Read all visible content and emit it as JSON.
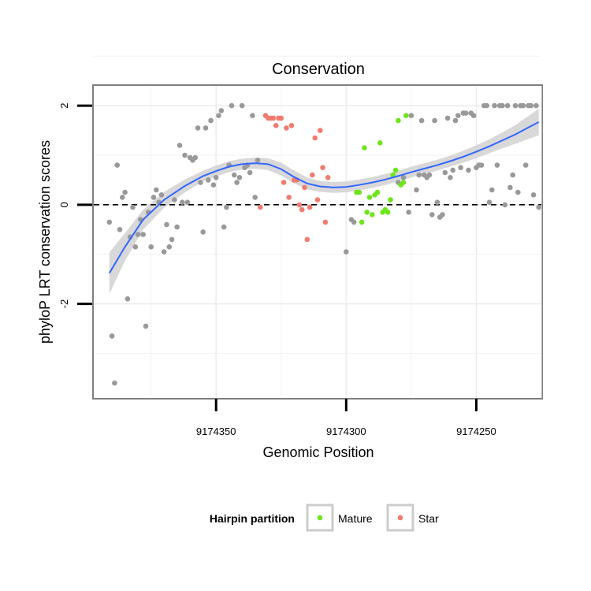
{
  "chart_data": {
    "type": "scatter",
    "title": "Conservation",
    "xlabel": "Genomic Position",
    "ylabel": "phyloP LRT conservation scores",
    "x_reversed": true,
    "xlim": [
      9174397,
      9174225
    ],
    "ylim": [
      -3.9,
      2.4
    ],
    "x_ticks": [
      9174350,
      9174300,
      9174250
    ],
    "x_tick_labels": [
      "9174350",
      "9174300",
      "9174250"
    ],
    "y_ticks": [
      2,
      0,
      -2
    ],
    "y_tick_labels": [
      "2",
      "0",
      "-2"
    ],
    "reference_line": {
      "y": 0,
      "style": "dashed"
    },
    "grid": true,
    "legend": {
      "title": "Hairpin partition",
      "placement": "bottom",
      "entries": [
        {
          "label": "Mature",
          "color": "#6fe51d"
        },
        {
          "label": "Star",
          "color": "#f07c6e"
        }
      ]
    },
    "colors": {
      "Other": "#999999",
      "Mature": "#6fe51d",
      "Star": "#f07c6e",
      "smooth": "#3366ff",
      "band": "#d4d4d4"
    },
    "series": [
      {
        "name": "Other",
        "points": [
          [
            9174391,
            -0.35
          ],
          [
            9174390,
            -2.65
          ],
          [
            9174389,
            -3.6
          ],
          [
            9174388,
            0.8
          ],
          [
            9174387,
            -0.5
          ],
          [
            9174386,
            0.15
          ],
          [
            9174385,
            0.25
          ],
          [
            9174384,
            -1.9
          ],
          [
            9174383,
            -0.65
          ],
          [
            9174382,
            -0.05
          ],
          [
            9174381,
            -0.85
          ],
          [
            9174380,
            -0.6
          ],
          [
            9174379,
            -0.3
          ],
          [
            9174378,
            -0.6
          ],
          [
            9174377,
            -2.45
          ],
          [
            9174376,
            -0.15
          ],
          [
            9174375,
            -0.85
          ],
          [
            9174374,
            0.15
          ],
          [
            9174373,
            0.3
          ],
          [
            9174372,
            0.05
          ],
          [
            9174371,
            0.2
          ],
          [
            9174370,
            -0.95
          ],
          [
            9174369,
            -0.4
          ],
          [
            9174368,
            -0.85
          ],
          [
            9174367,
            -0.7
          ],
          [
            9174366,
            0.1
          ],
          [
            9174365,
            -0.45
          ],
          [
            9174364,
            1.2
          ],
          [
            9174363,
            0.05
          ],
          [
            9174362,
            1.0
          ],
          [
            9174361,
            0.05
          ],
          [
            9174360,
            0.95
          ],
          [
            9174359,
            0.9
          ],
          [
            9174358,
            0.95
          ],
          [
            9174357,
            1.55
          ],
          [
            9174356,
            0.45
          ],
          [
            9174355,
            -0.55
          ],
          [
            9174354,
            1.55
          ],
          [
            9174353,
            0.5
          ],
          [
            9174352,
            1.7
          ],
          [
            9174351,
            0.4
          ],
          [
            9174350,
            0.55
          ],
          [
            9174349,
            1.8
          ],
          [
            9174348,
            1.9
          ],
          [
            9174347,
            -0.45
          ],
          [
            9174346,
            -0.05
          ],
          [
            9174345,
            0.8
          ],
          [
            9174344,
            2.0
          ],
          [
            9174343,
            0.6
          ],
          [
            9174342,
            0.45
          ],
          [
            9174341,
            0.55
          ],
          [
            9174340,
            2.0
          ],
          [
            9174339,
            0.75
          ],
          [
            9174338,
            0.8
          ],
          [
            9174337,
            0.65
          ],
          [
            9174336,
            1.8
          ],
          [
            9174335,
            0.15
          ],
          [
            9174334,
            0.9
          ],
          [
            9174300,
            -0.95
          ],
          [
            9174298,
            -0.3
          ],
          [
            9174297,
            -0.35
          ],
          [
            9174280,
            0.45
          ],
          [
            9174278,
            0.55
          ],
          [
            9174276,
            -0.15
          ],
          [
            9174275,
            1.8
          ],
          [
            9174273,
            0.3
          ],
          [
            9174272,
            0.6
          ],
          [
            9174271,
            1.7
          ],
          [
            9174270,
            0.6
          ],
          [
            9174269,
            0.55
          ],
          [
            9174268,
            0.6
          ],
          [
            9174267,
            -0.2
          ],
          [
            9174266,
            1.7
          ],
          [
            9174265,
            0.05
          ],
          [
            9174264,
            -0.25
          ],
          [
            9174263,
            -0.2
          ],
          [
            9174262,
            0.65
          ],
          [
            9174261,
            1.75
          ],
          [
            9174260,
            0.55
          ],
          [
            9174259,
            0.7
          ],
          [
            9174258,
            1.7
          ],
          [
            9174257,
            1.8
          ],
          [
            9174256,
            0.75
          ],
          [
            9174255,
            1.85
          ],
          [
            9174254,
            1.85
          ],
          [
            9174253,
            0.7
          ],
          [
            9174252,
            1.85
          ],
          [
            9174251,
            1.8
          ],
          [
            9174250,
            0.75
          ],
          [
            9174249,
            0.8
          ],
          [
            9174248,
            0.8
          ],
          [
            9174247,
            2.0
          ],
          [
            9174246,
            2.0
          ],
          [
            9174245,
            0.05
          ],
          [
            9174244,
            0.3
          ],
          [
            9174243,
            2.0
          ],
          [
            9174242,
            0.8
          ],
          [
            9174241,
            2.0
          ],
          [
            9174240,
            2.0
          ],
          [
            9174239,
            0.0
          ],
          [
            9174238,
            2.0
          ],
          [
            9174237,
            0.35
          ],
          [
            9174236,
            0.6
          ],
          [
            9174235,
            2.0
          ],
          [
            9174234,
            0.25
          ],
          [
            9174233,
            2.0
          ],
          [
            9174232,
            2.0
          ],
          [
            9174231,
            0.8
          ],
          [
            9174230,
            2.0
          ],
          [
            9174229,
            2.0
          ],
          [
            9174228,
            0.2
          ],
          [
            9174227,
            2.0
          ],
          [
            9174226,
            -0.05
          ]
        ]
      },
      {
        "name": "Mature",
        "points": [
          [
            9174296,
            0.25
          ],
          [
            9174295,
            0.25
          ],
          [
            9174294,
            -0.35
          ],
          [
            9174293,
            1.15
          ],
          [
            9174292,
            -0.15
          ],
          [
            9174291,
            0.15
          ],
          [
            9174290,
            -0.2
          ],
          [
            9174289,
            0.2
          ],
          [
            9174288,
            0.25
          ],
          [
            9174287,
            1.25
          ],
          [
            9174286,
            -0.15
          ],
          [
            9174285,
            -0.1
          ],
          [
            9174284,
            -0.15
          ],
          [
            9174283,
            0.1
          ],
          [
            9174282,
            0.6
          ],
          [
            9174281,
            0.7
          ],
          [
            9174280,
            1.7
          ],
          [
            9174279,
            0.4
          ],
          [
            9174278,
            0.45
          ],
          [
            9174277,
            1.8
          ]
        ]
      },
      {
        "name": "Star",
        "points": [
          [
            9174333,
            -0.05
          ],
          [
            9174331,
            1.8
          ],
          [
            9174330,
            1.75
          ],
          [
            9174329,
            1.75
          ],
          [
            9174328,
            1.75
          ],
          [
            9174327,
            1.6
          ],
          [
            9174326,
            1.75
          ],
          [
            9174325,
            1.75
          ],
          [
            9174324,
            0.45
          ],
          [
            9174323,
            1.55
          ],
          [
            9174322,
            0.15
          ],
          [
            9174321,
            1.6
          ],
          [
            9174320,
            0.5
          ],
          [
            9174319,
            0.5
          ],
          [
            9174318,
            0.0
          ],
          [
            9174317,
            -0.1
          ],
          [
            9174316,
            0.35
          ],
          [
            9174315,
            -0.7
          ],
          [
            9174314,
            -0.05
          ],
          [
            9174313,
            0.6
          ],
          [
            9174312,
            1.35
          ],
          [
            9174311,
            0.1
          ],
          [
            9174310,
            1.5
          ],
          [
            9174309,
            0.75
          ],
          [
            9174308,
            -0.35
          ],
          [
            9174307,
            0.55
          ]
        ]
      }
    ],
    "smooth": {
      "x": [
        9174391,
        9174385,
        9174378,
        9174370,
        9174362,
        9174355,
        9174350,
        9174345,
        9174340,
        9174335,
        9174330,
        9174325,
        9174320,
        9174315,
        9174310,
        9174305,
        9174300,
        9174295,
        9174290,
        9174285,
        9174280,
        9174275,
        9174270,
        9174265,
        9174260,
        9174255,
        9174250,
        9174245,
        9174240,
        9174235,
        9174230,
        9174226
      ],
      "y": [
        -1.38,
        -0.85,
        -0.3,
        0.1,
        0.38,
        0.58,
        0.68,
        0.77,
        0.82,
        0.84,
        0.82,
        0.72,
        0.56,
        0.43,
        0.37,
        0.35,
        0.36,
        0.4,
        0.45,
        0.51,
        0.58,
        0.66,
        0.73,
        0.8,
        0.88,
        0.97,
        1.07,
        1.18,
        1.3,
        1.42,
        1.56,
        1.67
      ],
      "band": [
        0.42,
        0.28,
        0.2,
        0.16,
        0.13,
        0.11,
        0.11,
        0.11,
        0.11,
        0.11,
        0.12,
        0.13,
        0.13,
        0.12,
        0.11,
        0.11,
        0.11,
        0.11,
        0.11,
        0.11,
        0.11,
        0.11,
        0.11,
        0.11,
        0.11,
        0.12,
        0.13,
        0.14,
        0.16,
        0.19,
        0.23,
        0.27
      ]
    }
  }
}
